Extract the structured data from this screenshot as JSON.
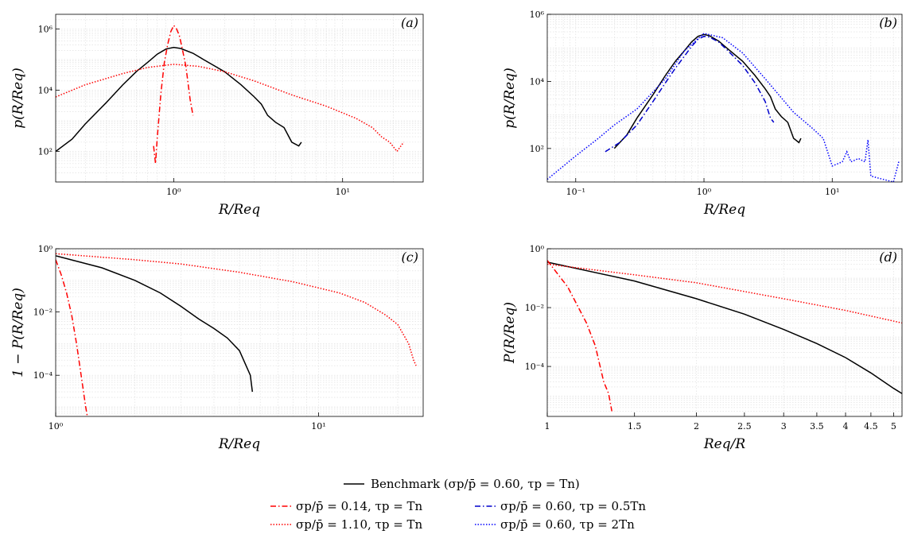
{
  "figure": {
    "legend": {
      "benchmark": "Benchmark (σp/p̄ = 0.60, τp = Tn)",
      "entries": [
        {
          "label": "σp/p̄ = 0.14, τp = Tn",
          "color": "#ff0000",
          "dash": "dashdot"
        },
        {
          "label": "σp/p̄ = 0.60, τp = 0.5Tn",
          "color": "#0000cc",
          "dash": "dashdot"
        },
        {
          "label": "σp/p̄ = 1.10, τp = Tn",
          "color": "#ff0000",
          "dash": "dotted"
        },
        {
          "label": "σp/p̄ = 0.60, τp = 2Tn",
          "color": "#0000ff",
          "dash": "dotted"
        }
      ]
    }
  },
  "chart_data": [
    {
      "panel": "(a)",
      "type": "line",
      "xscale": "log",
      "yscale": "log",
      "xlim": [
        0.2,
        30
      ],
      "ylim": [
        10,
        3000000
      ],
      "xlabel": "R/Req",
      "ylabel": "p(R/Req)",
      "xticks": [
        {
          "v": 1,
          "l": "10⁰"
        },
        {
          "v": 10,
          "l": "10¹"
        }
      ],
      "yticks": [
        {
          "v": 100,
          "l": "10²"
        },
        {
          "v": 10000,
          "l": "10⁴"
        },
        {
          "v": 1000000,
          "l": "10⁶"
        }
      ],
      "grid": true,
      "series": [
        {
          "color": "#000000",
          "dash": "solid",
          "x": [
            0.2,
            0.25,
            0.3,
            0.4,
            0.5,
            0.6,
            0.7,
            0.8,
            0.9,
            1.0,
            1.1,
            1.3,
            1.5,
            2.0,
            2.5,
            3.0,
            3.3,
            3.6,
            4.0,
            4.5,
            5.0,
            5.5,
            5.7
          ],
          "y": [
            100,
            250,
            800,
            4000,
            15000,
            40000,
            80000,
            150000,
            220000,
            250000,
            230000,
            160000,
            100000,
            40000,
            15000,
            6000,
            3500,
            1500,
            900,
            600,
            200,
            150,
            200
          ]
        },
        {
          "color": "#ff0000",
          "dash": "dashdot",
          "x": [
            0.76,
            0.78,
            0.8,
            0.84,
            0.88,
            0.92,
            0.96,
            1.0,
            1.04,
            1.08,
            1.12,
            1.18,
            1.25,
            1.3
          ],
          "y": [
            150,
            40,
            300,
            8000,
            80000,
            300000,
            800000,
            1300000,
            1000000,
            600000,
            250000,
            60000,
            5000,
            1500
          ]
        },
        {
          "color": "#ff0000",
          "dash": "dotted",
          "x": [
            0.2,
            0.3,
            0.5,
            0.7,
            1.0,
            1.4,
            2.0,
            3.0,
            5.0,
            8.0,
            12,
            15,
            17,
            19,
            21,
            23
          ],
          "y": [
            6000,
            15000,
            35000,
            55000,
            70000,
            60000,
            40000,
            20000,
            7000,
            3000,
            1200,
            600,
            300,
            200,
            100,
            200
          ]
        }
      ]
    },
    {
      "panel": "(b)",
      "type": "line",
      "xscale": "log",
      "yscale": "log",
      "xlim": [
        0.06,
        35
      ],
      "ylim": [
        10,
        1000000
      ],
      "xlabel": "R/Req",
      "ylabel": "p(R/Req)",
      "xticks": [
        {
          "v": 0.1,
          "l": "10⁻¹"
        },
        {
          "v": 1,
          "l": "10⁰"
        },
        {
          "v": 10,
          "l": "10¹"
        }
      ],
      "yticks": [
        {
          "v": 100,
          "l": "10²"
        },
        {
          "v": 10000,
          "l": "10⁴"
        },
        {
          "v": 1000000,
          "l": "10⁶"
        }
      ],
      "grid": true,
      "series": [
        {
          "color": "#000000",
          "dash": "solid",
          "x": [
            0.2,
            0.25,
            0.3,
            0.4,
            0.5,
            0.6,
            0.7,
            0.8,
            0.9,
            1.0,
            1.1,
            1.3,
            1.5,
            2.0,
            2.5,
            3.0,
            3.3,
            3.6,
            4.0,
            4.5,
            5.0,
            5.5,
            5.7
          ],
          "y": [
            100,
            250,
            800,
            4000,
            15000,
            40000,
            80000,
            150000,
            220000,
            250000,
            230000,
            160000,
            100000,
            40000,
            15000,
            6000,
            3500,
            1500,
            900,
            600,
            200,
            150,
            200
          ]
        },
        {
          "color": "#0000cc",
          "dash": "dashdot",
          "x": [
            0.17,
            0.22,
            0.3,
            0.4,
            0.5,
            0.6,
            0.7,
            0.8,
            0.9,
            1.0,
            1.1,
            1.3,
            1.5,
            2.0,
            2.5,
            3.0,
            3.3,
            3.5
          ],
          "y": [
            80,
            150,
            500,
            2500,
            9000,
            25000,
            55000,
            110000,
            180000,
            220000,
            210000,
            150000,
            90000,
            30000,
            9000,
            2500,
            800,
            600
          ]
        },
        {
          "color": "#0000ff",
          "dash": "dotted",
          "x": [
            0.06,
            0.1,
            0.15,
            0.2,
            0.3,
            0.5,
            0.7,
            1.0,
            1.4,
            2.0,
            3.0,
            5.0,
            7.0,
            8.5,
            10,
            12,
            13,
            14,
            16,
            18,
            19,
            20,
            25,
            30,
            33
          ],
          "y": [
            12,
            60,
            200,
            500,
            1500,
            12000,
            80000,
            270000,
            200000,
            70000,
            12000,
            1200,
            400,
            200,
            30,
            40,
            80,
            40,
            50,
            40,
            180,
            15,
            12,
            10,
            40
          ]
        }
      ]
    },
    {
      "panel": "(c)",
      "type": "line",
      "xscale": "log",
      "yscale": "log",
      "xlim": [
        1,
        25
      ],
      "ylim": [
        5e-06,
        1
      ],
      "xlabel": "R/Req",
      "ylabel": "1 − P(R/Req)",
      "xticks": [
        {
          "v": 1,
          "l": "10⁰"
        },
        {
          "v": 10,
          "l": "10¹"
        }
      ],
      "yticks": [
        {
          "v": 0.0001,
          "l": "10⁻⁴"
        },
        {
          "v": 0.01,
          "l": "10⁻²"
        },
        {
          "v": 1,
          "l": "10⁰"
        }
      ],
      "grid": true,
      "series": [
        {
          "color": "#000000",
          "dash": "solid",
          "x": [
            1,
            1.5,
            2,
            2.5,
            3,
            3.5,
            4,
            4.5,
            5,
            5.3,
            5.5,
            5.6
          ],
          "y": [
            0.6,
            0.25,
            0.1,
            0.04,
            0.015,
            0.006,
            0.003,
            0.0015,
            0.0006,
            0.0002,
            0.0001,
            3e-05
          ]
        },
        {
          "color": "#ff0000",
          "dash": "dashdot",
          "x": [
            1,
            1.05,
            1.1,
            1.15,
            1.2,
            1.25,
            1.3,
            1.32
          ],
          "y": [
            0.45,
            0.15,
            0.04,
            0.008,
            0.001,
            0.0001,
            1e-05,
            5e-06
          ]
        },
        {
          "color": "#ff0000",
          "dash": "dotted",
          "x": [
            1,
            2,
            3,
            5,
            8,
            12,
            15,
            18,
            20,
            22,
            23,
            23.5
          ],
          "y": [
            0.7,
            0.45,
            0.33,
            0.18,
            0.09,
            0.04,
            0.02,
            0.008,
            0.004,
            0.001,
            0.0003,
            0.0002
          ]
        }
      ]
    },
    {
      "panel": "(d)",
      "type": "line",
      "xscale": "log",
      "yscale": "log",
      "xlim": [
        1,
        5.2
      ],
      "ylim": [
        2e-06,
        1
      ],
      "xlabel": "Req/R",
      "ylabel": "P(R/Req)",
      "xticks": [
        {
          "v": 1,
          "l": "1"
        },
        {
          "v": 1.5,
          "l": "1.5"
        },
        {
          "v": 2,
          "l": "2"
        },
        {
          "v": 2.5,
          "l": "2.5"
        },
        {
          "v": 3,
          "l": "3"
        },
        {
          "v": 3.5,
          "l": "3.5"
        },
        {
          "v": 4,
          "l": "4"
        },
        {
          "v": 4.5,
          "l": "4.5"
        },
        {
          "v": 5,
          "l": "5"
        }
      ],
      "yticks": [
        {
          "v": 0.0001,
          "l": "10⁻⁴"
        },
        {
          "v": 0.01,
          "l": "10⁻²"
        },
        {
          "v": 1,
          "l": "10⁰"
        }
      ],
      "grid": true,
      "series": [
        {
          "color": "#000000",
          "dash": "solid",
          "x": [
            1,
            1.5,
            2,
            2.5,
            3,
            3.5,
            4,
            4.5,
            5,
            5.2
          ],
          "y": [
            0.35,
            0.08,
            0.02,
            0.006,
            0.0018,
            0.0006,
            0.0002,
            6e-05,
            1.8e-05,
            1.2e-05
          ]
        },
        {
          "color": "#ff0000",
          "dash": "dashdot",
          "x": [
            1,
            1.1,
            1.2,
            1.25,
            1.3,
            1.33,
            1.35
          ],
          "y": [
            0.4,
            0.05,
            0.003,
            0.0005,
            3e-05,
            1.2e-05,
            3e-06
          ]
        },
        {
          "color": "#ff0000",
          "dash": "dotted",
          "x": [
            1,
            1.5,
            2,
            3,
            4,
            5.2
          ],
          "y": [
            0.3,
            0.13,
            0.07,
            0.02,
            0.008,
            0.003
          ]
        }
      ]
    }
  ]
}
